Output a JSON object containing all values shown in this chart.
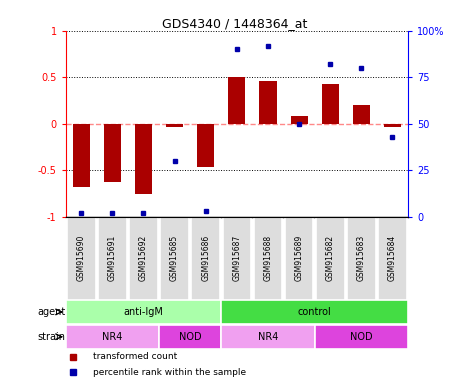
{
  "title": "GDS4340 / 1448364_at",
  "samples": [
    "GSM915690",
    "GSM915691",
    "GSM915692",
    "GSM915685",
    "GSM915686",
    "GSM915687",
    "GSM915688",
    "GSM915689",
    "GSM915682",
    "GSM915683",
    "GSM915684"
  ],
  "red_values": [
    -0.68,
    -0.63,
    -0.76,
    -0.04,
    -0.47,
    0.5,
    0.46,
    0.08,
    0.43,
    0.2,
    -0.03
  ],
  "blue_values": [
    2,
    2,
    2,
    30,
    3,
    90,
    92,
    50,
    82,
    80,
    43
  ],
  "agent_groups": [
    {
      "label": "anti-IgM",
      "start": 0,
      "end": 5,
      "color": "#aaffaa"
    },
    {
      "label": "control",
      "start": 5,
      "end": 11,
      "color": "#44dd44"
    }
  ],
  "strain_groups": [
    {
      "label": "NR4",
      "start": 0,
      "end": 3,
      "color": "#f0a0f0"
    },
    {
      "label": "NOD",
      "start": 3,
      "end": 5,
      "color": "#dd44dd"
    },
    {
      "label": "NR4",
      "start": 5,
      "end": 8,
      "color": "#f0a0f0"
    },
    {
      "label": "NOD",
      "start": 8,
      "end": 11,
      "color": "#dd44dd"
    }
  ],
  "ylim_left": [
    -1,
    1
  ],
  "ylim_right": [
    0,
    100
  ],
  "yticks_left": [
    -1,
    -0.5,
    0,
    0.5,
    1
  ],
  "ytick_labels_left": [
    "-1",
    "-0.5",
    "0",
    "0.5",
    "1"
  ],
  "yticks_right": [
    0,
    25,
    50,
    75,
    100
  ],
  "ytick_labels_right": [
    "0",
    "25",
    "50",
    "75",
    "100%"
  ],
  "bar_color": "#aa0000",
  "dot_color": "#0000aa",
  "hline_color": "#ff8888",
  "dotline_color": "black",
  "bg_color": "white",
  "plot_bg": "white",
  "bar_width": 0.55,
  "label_bg": "#dddddd",
  "legend_items": [
    {
      "color": "#aa0000",
      "label": "transformed count"
    },
    {
      "color": "#0000aa",
      "label": "percentile rank within the sample"
    }
  ]
}
